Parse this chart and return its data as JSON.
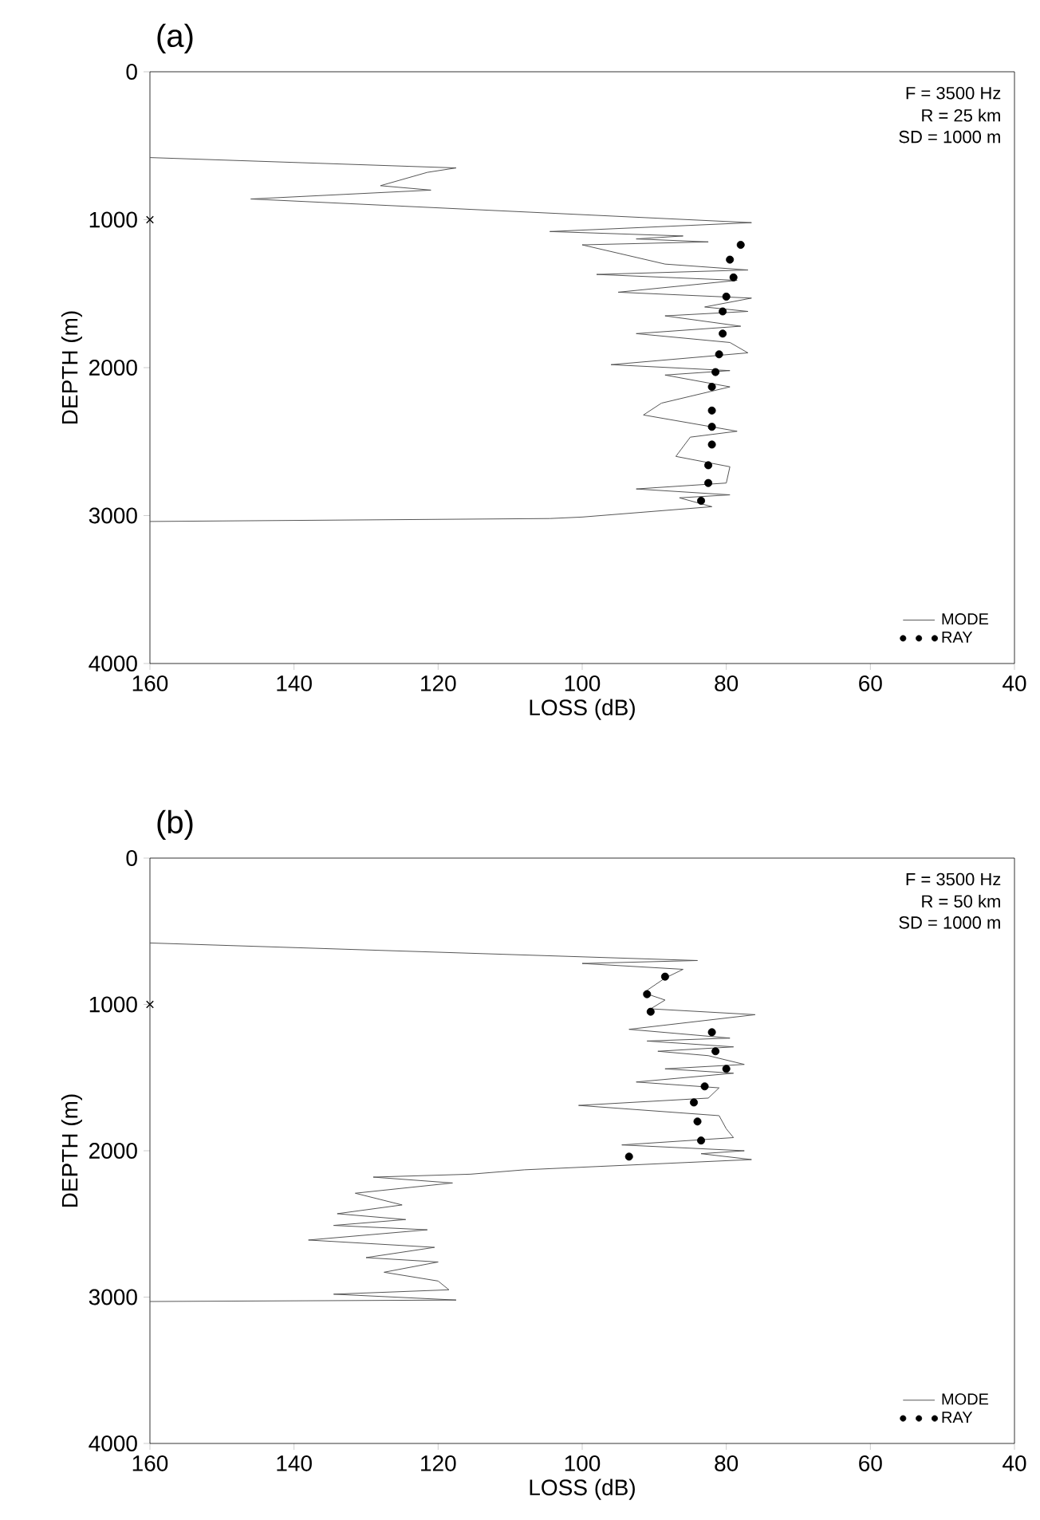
{
  "chart_data": [
    {
      "type": "line",
      "title": "(a)",
      "xlabel": "LOSS (dB)",
      "ylabel": "DEPTH (m)",
      "xlim": [
        160,
        40
      ],
      "ylim": [
        4000,
        0
      ],
      "xticks": [
        160,
        140,
        120,
        100,
        80,
        60,
        40
      ],
      "yticks": [
        0,
        1000,
        2000,
        3000,
        4000
      ],
      "legend": "bottom right",
      "annotations": [
        "F = 3500 Hz",
        "R = 25 km",
        "SD = 1000 m"
      ],
      "series": [
        {
          "name": "MODE",
          "color": "#555555",
          "x": [
            160,
            117.5,
            121.5,
            128,
            121,
            146,
            76.5,
            104.5,
            86,
            92.5,
            82.5,
            100,
            88.5,
            77,
            98,
            78.5,
            95,
            76.5,
            83,
            77,
            88.5,
            78,
            92.5,
            79.5,
            77,
            96,
            79.5,
            88.5,
            79.5,
            89,
            91.5,
            78.5,
            85,
            87,
            79.5,
            80,
            92.5,
            79.5,
            86.5,
            82,
            100,
            104.5,
            160
          ],
          "values": [
            580,
            650,
            680,
            770,
            800,
            860,
            1020,
            1080,
            1110,
            1130,
            1150,
            1170,
            1300,
            1340,
            1370,
            1410,
            1490,
            1530,
            1590,
            1620,
            1650,
            1720,
            1770,
            1830,
            1900,
            1980,
            2020,
            2050,
            2130,
            2240,
            2320,
            2430,
            2470,
            2600,
            2670,
            2780,
            2820,
            2860,
            2880,
            2940,
            3010,
            3020,
            3040
          ]
        },
        {
          "name": "RAY",
          "type": "scatter",
          "color": "#000000",
          "marker": "circle",
          "x": [
            78,
            79.5,
            79,
            80,
            80.5,
            80.5,
            81,
            81.5,
            82,
            82,
            82,
            82,
            82.5,
            82.5,
            83.5
          ],
          "values": [
            1170,
            1270,
            1390,
            1520,
            1620,
            1770,
            1910,
            2030,
            2130,
            2290,
            2400,
            2520,
            2660,
            2780,
            2900
          ]
        },
        {
          "type": "scatter",
          "color": "#000000",
          "marker": "cross",
          "x": [
            160
          ],
          "values": [
            1000
          ]
        }
      ]
    },
    {
      "type": "line",
      "title": "(b)",
      "xlabel": "LOSS (dB)",
      "ylabel": "DEPTH (m)",
      "xlim": [
        160,
        40
      ],
      "ylim": [
        4000,
        0
      ],
      "xticks": [
        160,
        140,
        120,
        100,
        80,
        60,
        40
      ],
      "yticks": [
        0,
        1000,
        2000,
        3000,
        4000
      ],
      "legend": "bottom right",
      "annotations": [
        "F = 3500 Hz",
        "R = 50 km",
        "SD = 1000 m"
      ],
      "series": [
        {
          "name": "MODE",
          "color": "#555555",
          "x": [
            160,
            84,
            100,
            86,
            88.5,
            91.5,
            88.5,
            90.5,
            76,
            93.5,
            79.5,
            91,
            79,
            89.5,
            82.5,
            77.5,
            88.5,
            79,
            92.5,
            81,
            82.5,
            100.5,
            81,
            80,
            79,
            94.5,
            77.5,
            83.5,
            76.5,
            108,
            115.5,
            129,
            118,
            131.5,
            125,
            134,
            124.5,
            134.5,
            121.5,
            138,
            120.5,
            130,
            120,
            127.5,
            120,
            118.5,
            134.5,
            117.5,
            160
          ],
          "values": [
            580,
            700,
            720,
            760,
            820,
            920,
            970,
            1030,
            1070,
            1170,
            1230,
            1250,
            1290,
            1320,
            1350,
            1410,
            1440,
            1470,
            1530,
            1570,
            1640,
            1690,
            1760,
            1850,
            1910,
            1960,
            2000,
            2020,
            2060,
            2130,
            2160,
            2180,
            2220,
            2290,
            2370,
            2430,
            2470,
            2510,
            2540,
            2610,
            2660,
            2730,
            2760,
            2830,
            2890,
            2950,
            2980,
            3020,
            3030
          ]
        },
        {
          "name": "RAY",
          "type": "scatter",
          "color": "#000000",
          "marker": "circle",
          "x": [
            88.5,
            91,
            90.5,
            82,
            81.5,
            80,
            83,
            84.5,
            84,
            83.5,
            93.5
          ],
          "values": [
            810,
            930,
            1050,
            1190,
            1320,
            1440,
            1560,
            1670,
            1800,
            1930,
            2040
          ]
        },
        {
          "type": "scatter",
          "color": "#000000",
          "marker": "cross",
          "x": [
            160
          ],
          "values": [
            1000
          ]
        }
      ]
    }
  ]
}
